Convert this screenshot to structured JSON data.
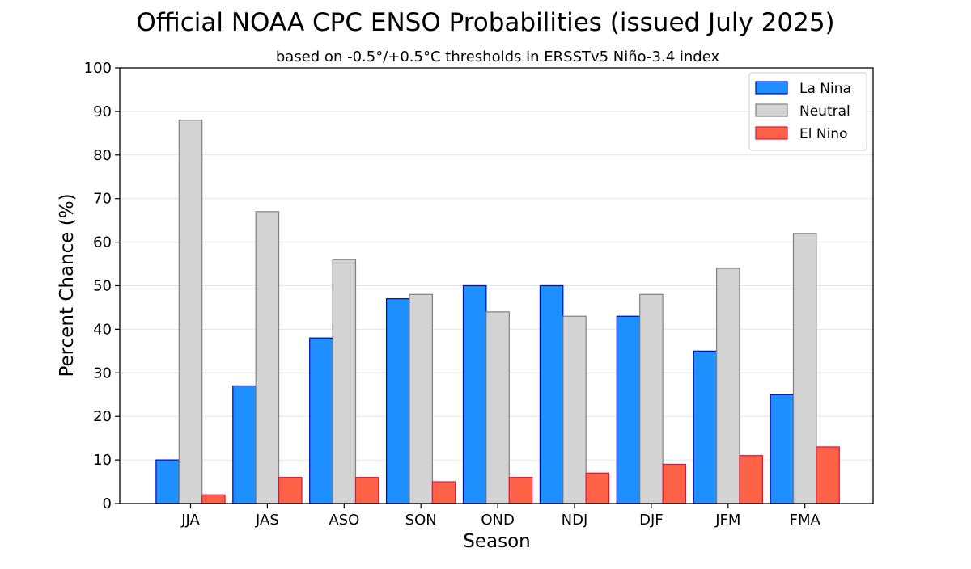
{
  "chart_data": {
    "type": "bar",
    "title": "Official NOAA CPC ENSO Probabilities (issued July 2025)",
    "subtitle": "based on -0.5°/+0.5°C thresholds in ERSSTv5 Niño-3.4 index",
    "xlabel": "Season",
    "ylabel": "Percent Chance (%)",
    "ylim": [
      0,
      100
    ],
    "yticks": [
      0,
      10,
      20,
      30,
      40,
      50,
      60,
      70,
      80,
      90,
      100
    ],
    "grid": true,
    "legend_position": "top-right",
    "categories": [
      "JJA",
      "JAS",
      "ASO",
      "SON",
      "OND",
      "NDJ",
      "DJF",
      "JFM",
      "FMA"
    ],
    "series": [
      {
        "name": "La Nina",
        "color": "#1E90FF",
        "edge": "#0000CD",
        "values": [
          10,
          27,
          38,
          47,
          50,
          50,
          43,
          35,
          25
        ]
      },
      {
        "name": "Neutral",
        "color": "#D3D3D3",
        "edge": "#808080",
        "values": [
          88,
          67,
          56,
          48,
          44,
          43,
          48,
          54,
          62
        ]
      },
      {
        "name": "El Nino",
        "color": "#FF6347",
        "edge": "#DC143C",
        "values": [
          2,
          6,
          6,
          5,
          6,
          7,
          9,
          11,
          13
        ]
      }
    ]
  }
}
